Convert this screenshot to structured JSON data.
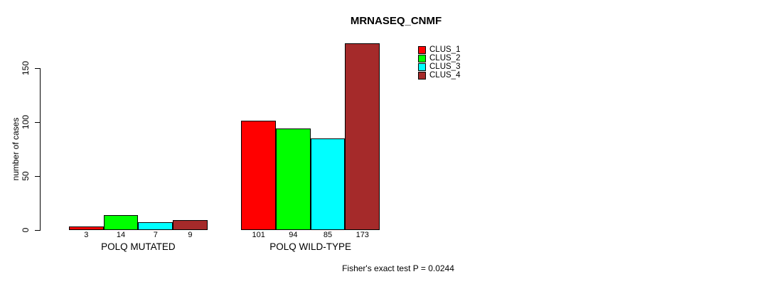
{
  "chart_data": {
    "type": "bar",
    "title": "MRNASEQ_CNMF",
    "categories": [
      "POLQ MUTATED",
      "POLQ WILD-TYPE"
    ],
    "series": [
      {
        "name": "CLUS_1",
        "color": "#FF0000",
        "values": [
          3,
          101
        ]
      },
      {
        "name": "CLUS_2",
        "color": "#00FF00",
        "values": [
          14,
          94
        ]
      },
      {
        "name": "CLUS_3",
        "color": "#00FFFF",
        "values": [
          7,
          85
        ]
      },
      {
        "name": "CLUS_4",
        "color": "#A52A2A",
        "values": [
          9,
          173
        ]
      }
    ],
    "xlabel": "",
    "ylabel": "number of cases",
    "yticks": [
      0,
      50,
      100,
      150
    ],
    "ylim": [
      0,
      180
    ],
    "grid": false,
    "legend_position": "top-right",
    "bar_value_labels": true,
    "annotations": [
      "Fisher's exact test P = 0.0244"
    ]
  }
}
